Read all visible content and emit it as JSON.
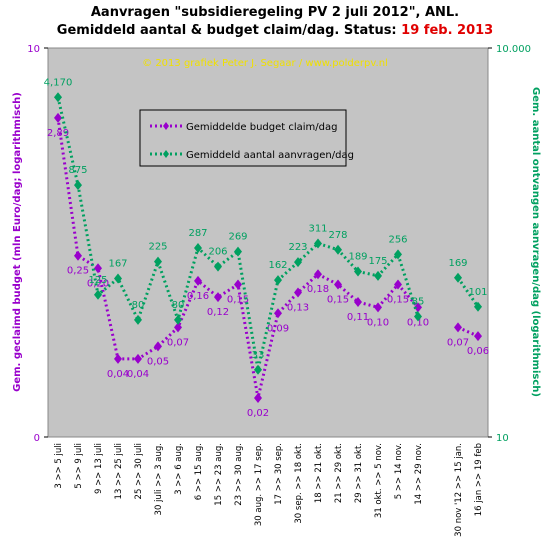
{
  "chart_data": {
    "type": "line",
    "title": "Aanvragen \"subsidieregeling  PV 2 juli 2012\", ANL.",
    "subtitle": "Gemiddeld aantal & budget claim/dag. Status:",
    "status": "19 feb. 2013",
    "credit": "© 2013 grafiek Peter J. Segaar / www.polderpv.nl",
    "y_label": "Gem. geclaimd budget (mln Euro/dag; logarithmisch)",
    "y2_label": "Gem. aantal ontvangen aanvragen/dag (logarithmisch)",
    "log_scale": true,
    "categories": [
      "3 >> 5 juli",
      "5 >> 9 juli",
      "9 >> 13 juli",
      "13 >> 25 juli",
      "25 >> 30 juli",
      "30 juli >> 3 aug.",
      "3 >> 6 aug.",
      "6 >> 15 aug.",
      "15 >> 23 aug.",
      "23 >> 30 aug.",
      "30 aug. >> 17 sep.",
      "17 >> 30 sep.",
      "30 sep. >> 18 okt.",
      "18 >> 21 okt.",
      "21 >> 29 okt.",
      "29 >> 31 okt.",
      "31 okt. >> 5 nov.",
      "5 >> 14 nov.",
      "14 >> 29 nov.",
      null,
      "30 nov '12 >> 15 jan.",
      "16 jan >> 19 feb"
    ],
    "ylim": [
      0.01,
      10
    ],
    "yticks": [
      {
        "value": 0.01,
        "label": "0"
      },
      10
    ],
    "y2lim": [
      10,
      10000
    ],
    "y2ticks": [
      10,
      {
        "value": 10000,
        "label": "10.000"
      }
    ],
    "series": [
      {
        "name": "Gemiddelde budget claim/dag",
        "color": "#9900cc",
        "values": [
          2.89,
          0.25,
          0.2,
          0.04,
          0.04,
          0.05,
          0.07,
          0.16,
          0.12,
          0.15,
          0.02,
          0.09,
          0.13,
          0.18,
          0.15,
          0.11,
          0.1,
          0.15,
          0.1,
          null,
          0.07,
          0.06
        ],
        "value_labels": [
          "2,89",
          "0,25",
          "0,20",
          "0,04",
          "0,04",
          "0,05",
          "0,07",
          "0,16",
          "0,12",
          "0,15",
          "0,02",
          "0,09",
          "0,13",
          "0,18",
          "0,15",
          "0,11",
          "0,10",
          "0,15",
          "0,10",
          null,
          "0,07",
          "0,06"
        ]
      },
      {
        "name": "Gemiddeld aantal aanvragen/dag",
        "color": "#00a060",
        "axis": "y2",
        "values": [
          4170,
          875,
          125,
          167,
          80,
          225,
          80,
          287,
          206,
          269,
          33,
          162,
          223,
          311,
          278,
          189,
          175,
          256,
          85,
          null,
          169,
          101
        ],
        "value_labels": [
          "4,170",
          "875",
          "125",
          "167",
          "80",
          "225",
          "80",
          "287",
          "206",
          "269",
          "33",
          "162",
          "223",
          "311",
          "278",
          "189",
          "175",
          "256",
          "85",
          null,
          "169",
          "101"
        ]
      }
    ]
  }
}
